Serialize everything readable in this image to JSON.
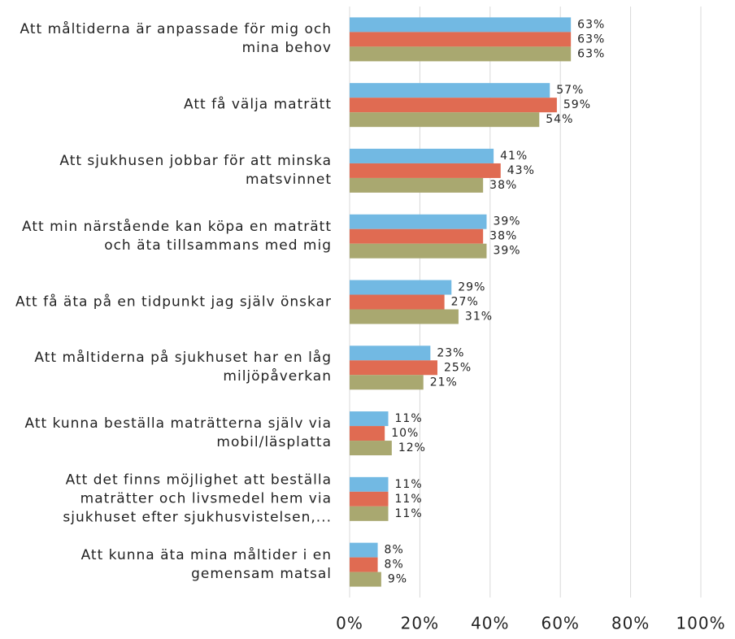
{
  "chart_data": {
    "type": "hbar",
    "categories": [
      "Att måltiderna är anpassade för mig och mina behov",
      "Att få välja maträtt",
      "Att sjukhusen jobbar för att minska matsvinnet",
      "Att min närstående kan köpa en maträtt och äta tillsammans med mig",
      "Att få äta på en tidpunkt jag själv önskar",
      "Att måltiderna på sjukhuset har en låg miljöpåverkan",
      "Att kunna beställa maträtterna själv via mobil/läsplatta",
      "Att det finns möjlighet att beställa maträtter och livsmedel hem via sjukhuset efter sjukhusvistelsen,...",
      "Att kunna äta mina måltider i en gemensam matsal"
    ],
    "series": [
      {
        "color": "#72b9e3",
        "values": [
          63,
          57,
          41,
          39,
          29,
          23,
          11,
          11,
          8
        ],
        "value_labels": [
          "63%",
          "57%",
          "41%",
          "39%",
          "29%",
          "23%",
          "11%",
          "11%",
          "8%"
        ]
      },
      {
        "color": "#e06b52",
        "values": [
          63,
          59,
          43,
          38,
          27,
          25,
          10,
          11,
          8
        ],
        "value_labels": [
          "63%",
          "59%",
          "43%",
          "38%",
          "27%",
          "25%",
          "10%",
          "11%",
          "8%"
        ]
      },
      {
        "color": "#a9a870",
        "values": [
          63,
          54,
          38,
          39,
          31,
          21,
          12,
          11,
          9
        ],
        "value_labels": [
          "63%",
          "54%",
          "38%",
          "39%",
          "31%",
          "21%",
          "12%",
          "11%",
          "9%"
        ]
      }
    ],
    "xlim": [
      0,
      100
    ],
    "xticks": [
      {
        "value": 0,
        "label": "0%"
      },
      {
        "value": 20,
        "label": "20%"
      },
      {
        "value": 40,
        "label": "40%"
      },
      {
        "value": 60,
        "label": "60%"
      },
      {
        "value": 80,
        "label": "80%"
      },
      {
        "value": 100,
        "label": "100%"
      }
    ],
    "grid": true
  }
}
